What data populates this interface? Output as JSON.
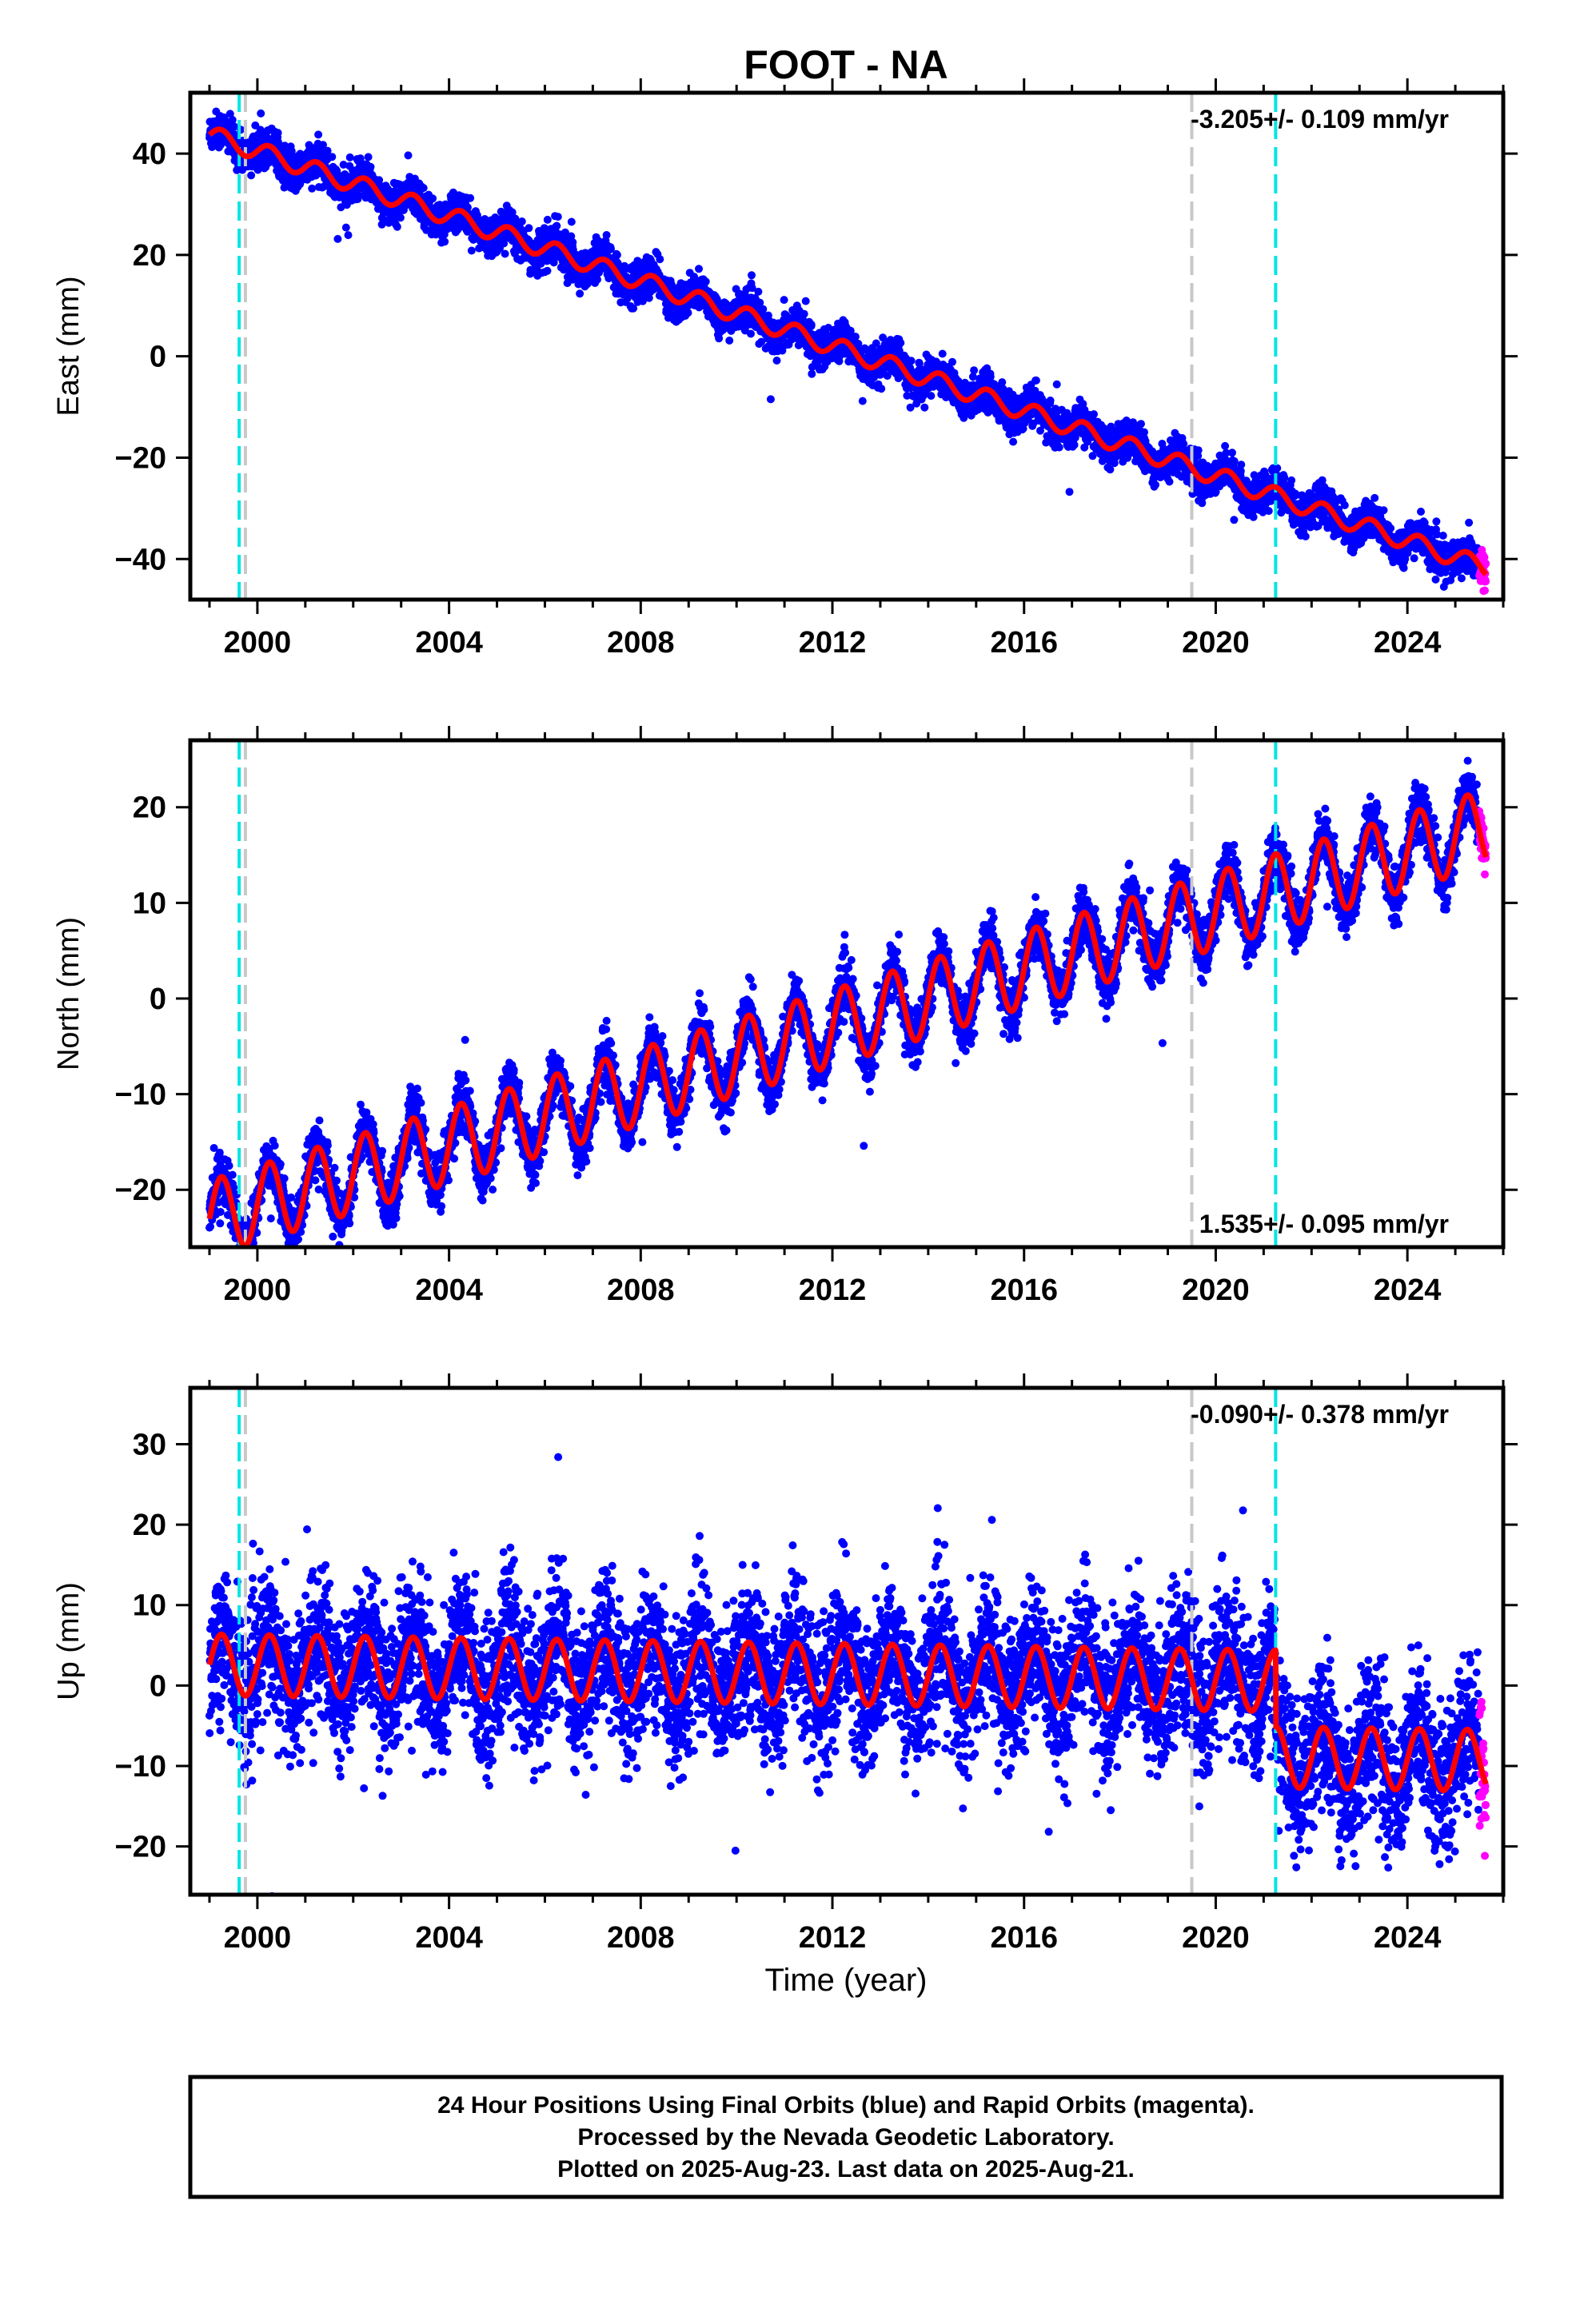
{
  "title": "FOOT - NA",
  "xlabel": "Time (year)",
  "colors": {
    "final_orbits": "#0000ff",
    "rapid_orbits": "#ff00ff",
    "model_fit": "#ff0000",
    "equipment_change": "#c8c8c8",
    "earthquake_event": "#00e5e5"
  },
  "footer": {
    "line1": "24 Hour Positions Using Final Orbits (blue) and Rapid Orbits (magenta).",
    "line2": "Processed by the Nevada Geodetic Laboratory.",
    "line3": "Plotted on 2025-Aug-23. Last data on 2025-Aug-21."
  },
  "chart_data": [
    {
      "type": "scatter",
      "component": "East",
      "ylabel": "East (mm)",
      "xlim": [
        1998.6,
        2026.0
      ],
      "ylim": [
        -48,
        52
      ],
      "xticks": [
        2000,
        2004,
        2008,
        2012,
        2016,
        2020,
        2024
      ],
      "yticks": [
        -40,
        -20,
        0,
        20,
        40
      ],
      "rate_text": "-3.205+/- 0.109 mm/yr",
      "rate_position": "top-right",
      "data_start": 1999.0,
      "data_end": 2025.64,
      "rapid_start": 2025.5,
      "trend": {
        "slope_mm_per_yr": -3.205,
        "value_at_2000": 40.5
      },
      "seasonal": {
        "amplitude_mm": 1.8,
        "period_yr": 1.0
      },
      "scatter_sigma_mm": 1.8,
      "offsets": [],
      "events": {
        "gray": [
          1999.75,
          2019.5
        ],
        "cyan": [
          1999.62,
          2021.25
        ]
      }
    },
    {
      "type": "scatter",
      "component": "North",
      "ylabel": "North (mm)",
      "xlim": [
        1998.6,
        2026.0
      ],
      "ylim": [
        -26,
        27
      ],
      "xticks": [
        2000,
        2004,
        2008,
        2012,
        2016,
        2020,
        2024
      ],
      "yticks": [
        -20,
        -10,
        0,
        10,
        20
      ],
      "rate_text": "1.535+/- 0.095 mm/yr",
      "rate_position": "bottom-right",
      "data_start": 1999.0,
      "data_end": 2025.64,
      "rapid_start": 2025.5,
      "trend": {
        "slope_mm_per_yr": 1.535,
        "value_at_2000": -21.5
      },
      "seasonal": {
        "amplitude_mm": 4.0,
        "period_yr": 1.0
      },
      "scatter_sigma_mm": 1.4,
      "offsets": [],
      "events": {
        "gray": [
          1999.75,
          2019.5
        ],
        "cyan": [
          1999.62,
          2021.25
        ]
      }
    },
    {
      "type": "scatter",
      "component": "Up",
      "ylabel": "Up (mm)",
      "xlim": [
        1998.6,
        2026.0
      ],
      "ylim": [
        -26,
        37
      ],
      "xticks": [
        2000,
        2004,
        2008,
        2012,
        2016,
        2020,
        2024
      ],
      "yticks": [
        -20,
        -10,
        0,
        10,
        20,
        30
      ],
      "rate_text": "-0.090+/- 0.378 mm/yr",
      "rate_position": "top-right",
      "data_start": 1999.0,
      "data_end": 2025.64,
      "rapid_start": 2025.5,
      "trend": {
        "slope_mm_per_yr": -0.09,
        "value_at_2000": 2.5
      },
      "seasonal": {
        "amplitude_mm": 3.8,
        "period_yr": 1.0
      },
      "scatter_sigma_mm": 4.5,
      "offsets": [
        {
          "epoch": 2021.25,
          "size_mm": -9.5
        }
      ],
      "events": {
        "gray": [
          1999.75,
          2019.5
        ],
        "cyan": [
          1999.62,
          2021.25
        ]
      }
    }
  ]
}
